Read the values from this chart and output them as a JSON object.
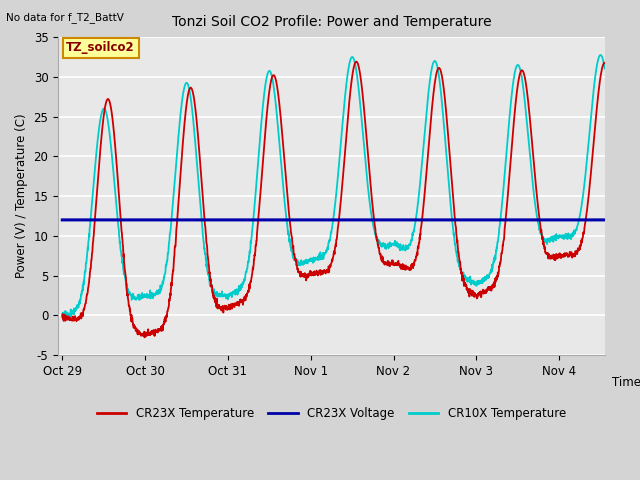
{
  "title": "Tonzi Soil CO2 Profile: Power and Temperature",
  "no_data_text": "No data for f_T2_BattV",
  "ylabel": "Power (V) / Temperature (C)",
  "xlabel": "Time",
  "ylim": [
    -5,
    35
  ],
  "yticks": [
    -5,
    0,
    5,
    10,
    15,
    20,
    25,
    30,
    35
  ],
  "xtick_labels": [
    "Oct 29",
    "Oct 30",
    "Oct 31",
    "Nov 1",
    "Nov 2",
    "Nov 3",
    "Nov 4"
  ],
  "legend_entries": [
    "CR23X Temperature",
    "CR23X Voltage",
    "CR10X Temperature"
  ],
  "legend_colors": [
    "#cc0000",
    "#0000aa",
    "#00cccc"
  ],
  "cr23x_voltage_value": 12.0,
  "annotation_box_text": "TZ_soilco2",
  "annotation_box_color": "#ffff99",
  "annotation_box_edge_color": "#cc8800",
  "plot_bg_color": "#e8e8e8",
  "grid_color": "#ffffff",
  "cr23x_color": "#cc0000",
  "cr10x_color": "#00cccc",
  "voltage_color": "#0000aa",
  "fig_bg_color": "#d4d4d4"
}
